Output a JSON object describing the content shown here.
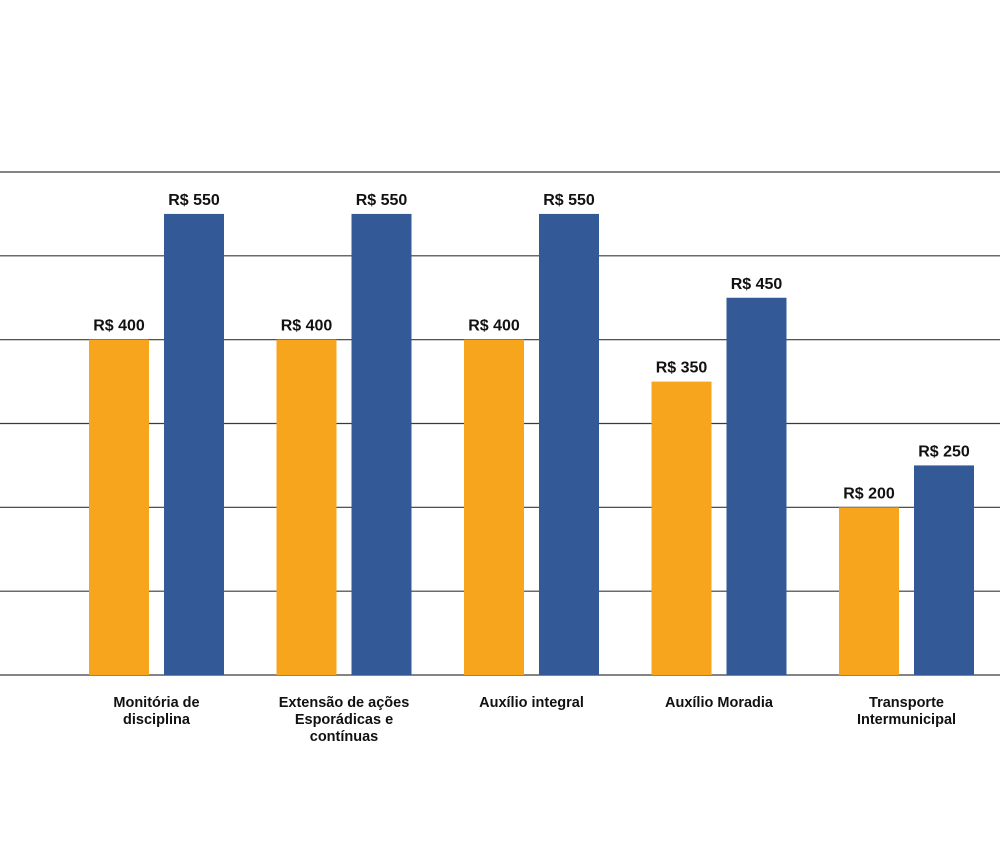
{
  "chart_data": {
    "type": "bar",
    "categories": [
      [
        "Monitória de",
        "disciplina"
      ],
      [
        "Extensão de ações",
        "Esporádicas e",
        "contínuas"
      ],
      [
        "Auxílio integral"
      ],
      [
        "Auxílio Moradia"
      ],
      [
        "Transporte",
        "Intermunicipal"
      ]
    ],
    "series": [
      {
        "color": "#F8A51E",
        "values": [
          400,
          400,
          400,
          350,
          200
        ],
        "labels": [
          "R$ 400",
          "R$ 400",
          "R$ 400",
          "R$ 350",
          "R$ 200"
        ]
      },
      {
        "color": "#335A97",
        "values": [
          550,
          550,
          550,
          450,
          250
        ],
        "labels": [
          "R$ 550",
          "R$ 550",
          "R$ 550",
          "R$ 450",
          "R$ 250"
        ]
      }
    ],
    "ylim": [
      0,
      600
    ],
    "gridline_step": 100,
    "grid": true,
    "legend": "none",
    "title": "",
    "xlabel": "",
    "ylabel": ""
  }
}
